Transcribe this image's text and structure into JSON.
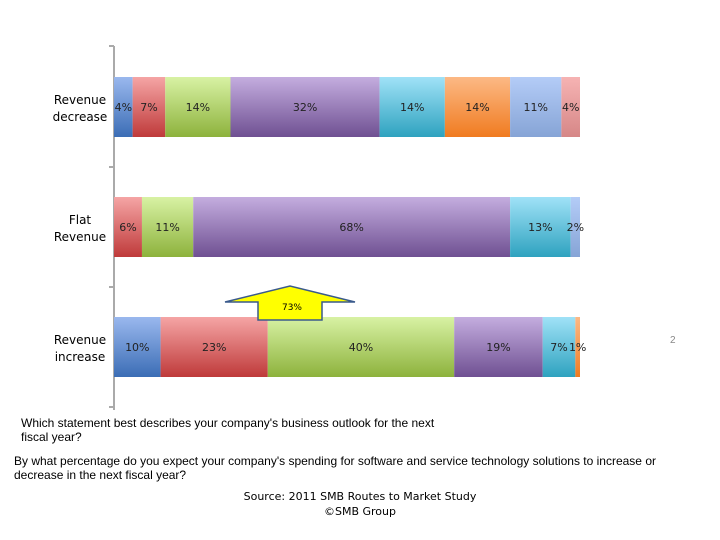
{
  "chart_data": {
    "type": "bar",
    "orientation": "horizontal",
    "stacked": "100%",
    "categories": [
      "Revenue decrease",
      "Flat Revenue",
      "Revenue increase"
    ],
    "category_lines": [
      [
        "Revenue",
        "decrease"
      ],
      [
        "Flat",
        "Revenue"
      ],
      [
        "Revenue",
        "increase"
      ]
    ],
    "series_colors": [
      [
        "#9ab8ee",
        "#3b6db5"
      ],
      [
        "#f5a5a5",
        "#bf3a3a"
      ],
      [
        "#d8f2a4",
        "#8db23c"
      ],
      [
        "#c4addf",
        "#6f5092"
      ],
      [
        "#a0e2f7",
        "#2ea2bf"
      ],
      [
        "#fcb985",
        "#f07b20"
      ],
      [
        "#b4ccf7",
        "#86a4d6"
      ],
      [
        "#f6b3b3",
        "#d68787"
      ]
    ],
    "series": [
      {
        "values": [
          4,
          0,
          10
        ]
      },
      {
        "values": [
          7,
          6,
          23
        ]
      },
      {
        "values": [
          14,
          11,
          40
        ]
      },
      {
        "values": [
          32,
          68,
          19
        ]
      },
      {
        "values": [
          14,
          13,
          7
        ]
      },
      {
        "values": [
          14,
          0,
          1
        ]
      },
      {
        "values": [
          11,
          2,
          0
        ]
      },
      {
        "values": [
          4,
          0,
          0
        ]
      }
    ],
    "value_suffix": "%",
    "xlim": [
      0,
      100
    ],
    "annotation": {
      "text": "73%",
      "category": "Revenue increase",
      "fill": "#ffff00",
      "stroke": "#3a5a8c"
    }
  },
  "question_outlook": "Which statement best describes your company's business outlook for the next fiscal year?",
  "question_spending": "By what percentage do you expect your company's spending for software and service technology solutions to increase or decrease in the next fiscal year?",
  "source": "Source: 2011 SMB Routes to Market Study",
  "copyright": "©SMB Group",
  "page_number": "2"
}
